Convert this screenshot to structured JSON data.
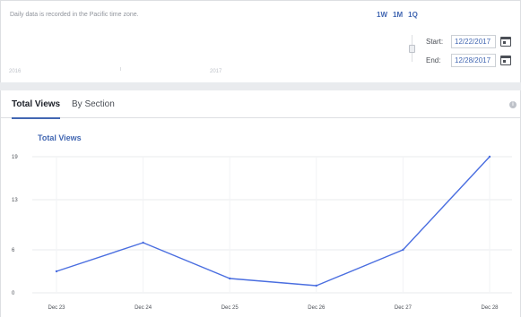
{
  "header": {
    "timezone_note": "Daily data is recorded in the Pacific time zone.",
    "range_buttons": [
      "1W",
      "1M",
      "1Q"
    ],
    "year_labels": [
      "2016",
      "2017"
    ],
    "start_label": "Start:",
    "start_date": "12/22/2017",
    "end_label": "End:",
    "end_date": "12/28/2017"
  },
  "tabs": {
    "total_views": "Total Views",
    "by_section": "By Section"
  },
  "info_icon": "i",
  "chart_data": {
    "type": "line",
    "title": "Total Views",
    "categories": [
      "Dec 23",
      "Dec 24",
      "Dec 25",
      "Dec 26",
      "Dec 27",
      "Dec 28"
    ],
    "series": [
      {
        "name": "Total Views",
        "values": [
          3,
          7,
          2,
          1,
          6,
          19
        ],
        "color": "#4a6ee0"
      }
    ],
    "yticks": [
      0,
      6,
      13,
      19
    ],
    "ylim": [
      0,
      19
    ],
    "grid": true,
    "legend": "none"
  }
}
